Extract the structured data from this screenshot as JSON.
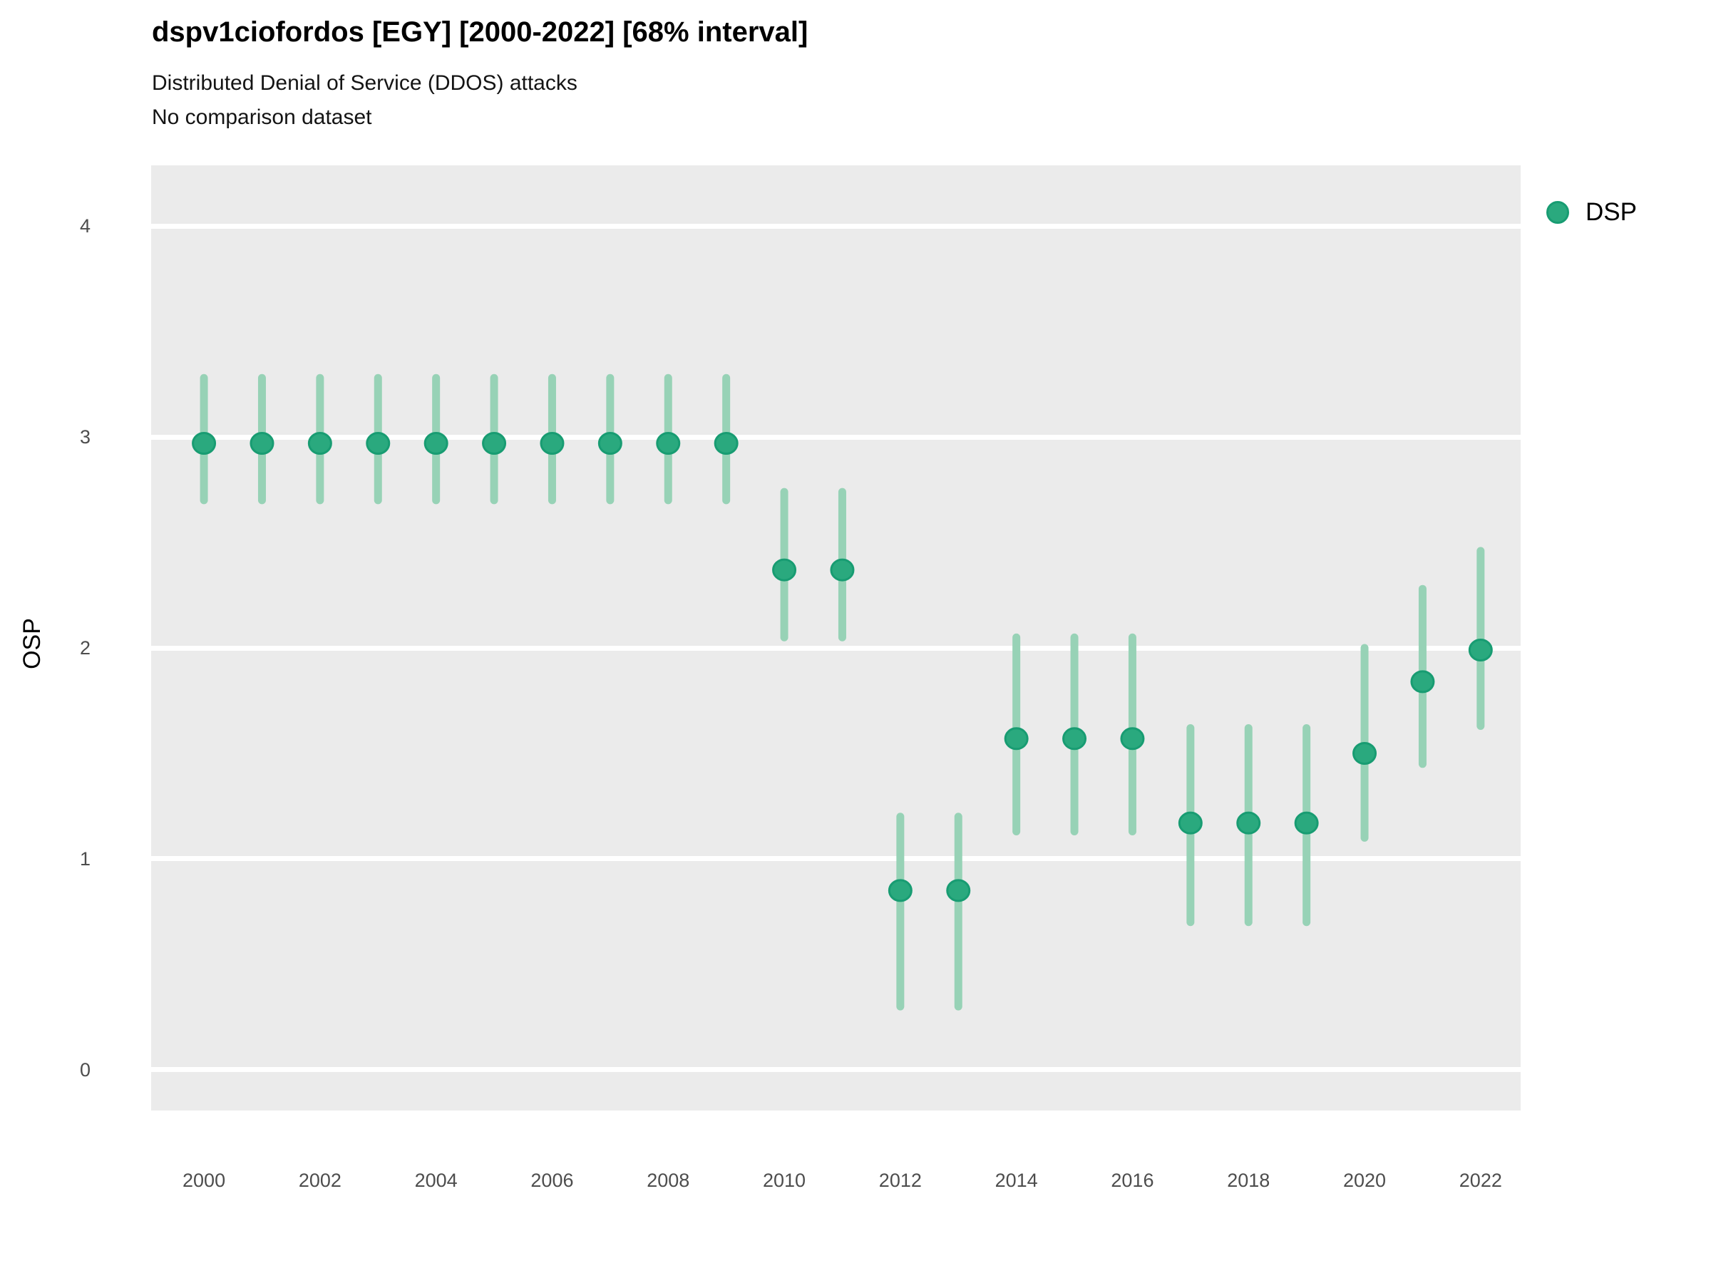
{
  "chart_data": {
    "type": "scatter",
    "title": "dspv1ciofordos [EGY] [2000-2022] [68% interval]",
    "subtitle": "Distributed Denial of Service (DDOS) attacks",
    "note": "No comparison dataset",
    "ylabel": "OSP",
    "xlabel": "",
    "interval_level": "68%",
    "xlim": [
      1999.09,
      2022.69
    ],
    "ylim": [
      -0.193,
      4.288
    ],
    "yticks": [
      0,
      1,
      2,
      3,
      4
    ],
    "xticks": [
      2000,
      2002,
      2004,
      2006,
      2008,
      2010,
      2012,
      2014,
      2016,
      2018,
      2020,
      2022
    ],
    "grid": {
      "horizontal": true,
      "color": "#ffffff"
    },
    "panel_bg": "#ebebeb",
    "tick_label_color": "#4d4d4d",
    "legend": {
      "label": "DSP",
      "position": "top-right"
    },
    "series": [
      {
        "name": "DSP",
        "marker_color": "#2aa97e",
        "marker_edge_color": "#189c72",
        "interval_color": "#97d2b6",
        "points": [
          {
            "year": 2000,
            "value": 2.97,
            "lo": 2.7,
            "hi": 3.28
          },
          {
            "year": 2001,
            "value": 2.97,
            "lo": 2.7,
            "hi": 3.28
          },
          {
            "year": 2002,
            "value": 2.97,
            "lo": 2.7,
            "hi": 3.28
          },
          {
            "year": 2003,
            "value": 2.97,
            "lo": 2.7,
            "hi": 3.28
          },
          {
            "year": 2004,
            "value": 2.97,
            "lo": 2.7,
            "hi": 3.28
          },
          {
            "year": 2005,
            "value": 2.97,
            "lo": 2.7,
            "hi": 3.28
          },
          {
            "year": 2006,
            "value": 2.97,
            "lo": 2.7,
            "hi": 3.28
          },
          {
            "year": 2007,
            "value": 2.97,
            "lo": 2.7,
            "hi": 3.28
          },
          {
            "year": 2008,
            "value": 2.97,
            "lo": 2.7,
            "hi": 3.28
          },
          {
            "year": 2009,
            "value": 2.97,
            "lo": 2.7,
            "hi": 3.28
          },
          {
            "year": 2010,
            "value": 2.37,
            "lo": 2.05,
            "hi": 2.74
          },
          {
            "year": 2011,
            "value": 2.37,
            "lo": 2.05,
            "hi": 2.74
          },
          {
            "year": 2012,
            "value": 0.85,
            "lo": 0.3,
            "hi": 1.2
          },
          {
            "year": 2013,
            "value": 0.85,
            "lo": 0.3,
            "hi": 1.2
          },
          {
            "year": 2014,
            "value": 1.57,
            "lo": 1.13,
            "hi": 2.05
          },
          {
            "year": 2015,
            "value": 1.57,
            "lo": 1.13,
            "hi": 2.05
          },
          {
            "year": 2016,
            "value": 1.57,
            "lo": 1.13,
            "hi": 2.05
          },
          {
            "year": 2017,
            "value": 1.17,
            "lo": 0.7,
            "hi": 1.62
          },
          {
            "year": 2018,
            "value": 1.17,
            "lo": 0.7,
            "hi": 1.62
          },
          {
            "year": 2019,
            "value": 1.17,
            "lo": 0.7,
            "hi": 1.62
          },
          {
            "year": 2020,
            "value": 1.5,
            "lo": 1.1,
            "hi": 2.0
          },
          {
            "year": 2021,
            "value": 1.84,
            "lo": 1.45,
            "hi": 2.28
          },
          {
            "year": 2022,
            "value": 1.99,
            "lo": 1.63,
            "hi": 2.46
          }
        ]
      }
    ]
  }
}
